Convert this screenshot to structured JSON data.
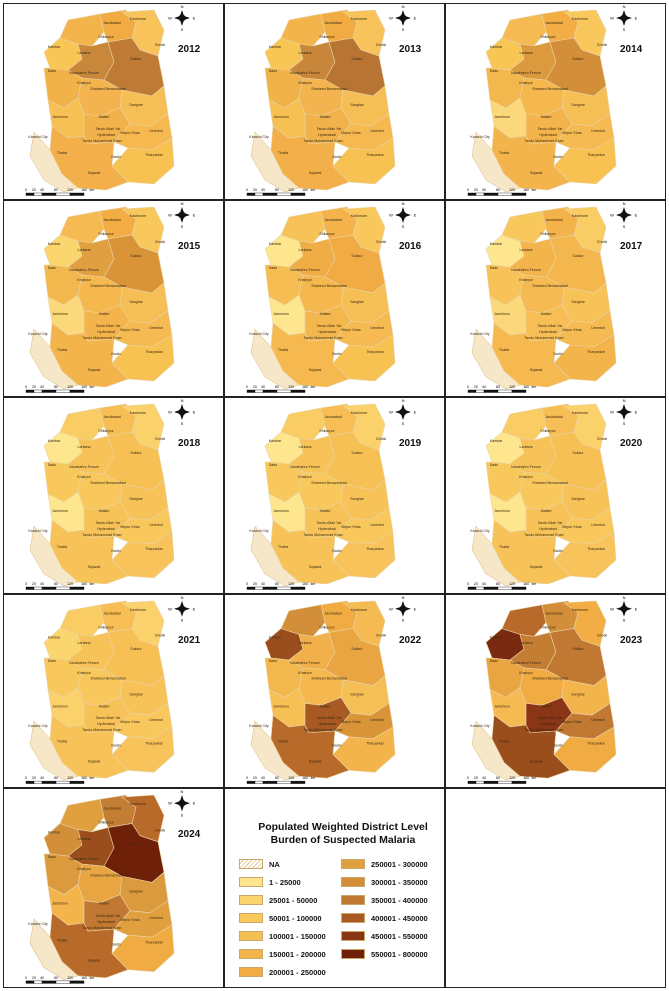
{
  "panels": [
    {
      "year": "2012",
      "fills": [
        "#f8c655",
        "#f3b44c",
        "#f0ab42",
        "#f7c35a",
        "#c8873a",
        "#bf7b35",
        "#f1b24a",
        "#f6c053",
        "#f3b34e",
        "#f6bf55",
        "#f2b24b",
        "#f5b950",
        "#f7c252",
        "#f3b04a"
      ]
    },
    {
      "year": "2013",
      "fills": [
        "#f8c655",
        "#f3b44c",
        "#f0ab42",
        "#f7c35a",
        "#c7863a",
        "#b87432",
        "#f1b24a",
        "#f6c053",
        "#f3b34e",
        "#f6bf55",
        "#f2b24b",
        "#f5b950",
        "#f7c252",
        "#f3b04a"
      ]
    },
    {
      "year": "2014",
      "fills": [
        "#f8c655",
        "#f5bb52",
        "#f2ad45",
        "#f8c85d",
        "#dc9a3e",
        "#d38e3a",
        "#f3b84d",
        "#fbd97a",
        "#f4b84f",
        "#f6bf55",
        "#f3b44c",
        "#f5ba52",
        "#f7c252",
        "#f4b44c"
      ]
    },
    {
      "year": "2015",
      "fills": [
        "#fbd66f",
        "#f5bb52",
        "#f2ad45",
        "#f8c85d",
        "#e0a040",
        "#d99438",
        "#f3b84d",
        "#fbd97a",
        "#f4b84f",
        "#f6bf55",
        "#f3b44c",
        "#f5ba52",
        "#f7c252",
        "#f4b44c"
      ]
    },
    {
      "year": "2016",
      "fills": [
        "#fde68d",
        "#f7c358",
        "#f4b34a",
        "#f8c85d",
        "#f0ac45",
        "#f0ab44",
        "#f5bd52",
        "#fde68d",
        "#f4b84f",
        "#f6bf55",
        "#f4b74d",
        "#f5ba52",
        "#f7c252",
        "#f5b950"
      ]
    },
    {
      "year": "2017",
      "fills": [
        "#fde68d",
        "#f8c85d",
        "#f4b34a",
        "#f9cd63",
        "#f3b44c",
        "#f4b74d",
        "#f7c358",
        "#fbd97a",
        "#f5bb52",
        "#f7c358",
        "#f6be54",
        "#f5ba52",
        "#f4b44c",
        "#f5b950"
      ]
    },
    {
      "year": "2018",
      "fills": [
        "#fde68d",
        "#f9cd63",
        "#f6be54",
        "#fad16a",
        "#f7c358",
        "#f6c055",
        "#f8c85d",
        "#fde68d",
        "#f8c85d",
        "#f7c358",
        "#f7c358",
        "#f8c85d",
        "#f7c35a",
        "#f7c358"
      ]
    },
    {
      "year": "2019",
      "fills": [
        "#fde68d",
        "#f9cd63",
        "#f6be54",
        "#fad16a",
        "#f7c358",
        "#f6c055",
        "#f8c85d",
        "#fde68d",
        "#f8c85d",
        "#f7c358",
        "#f7c358",
        "#f8c85d",
        "#f7c35a",
        "#f7c358"
      ]
    },
    {
      "year": "2020",
      "fills": [
        "#fde68d",
        "#f9cd63",
        "#f6be54",
        "#fad16a",
        "#f7c358",
        "#f6c055",
        "#f8c85d",
        "#fde68d",
        "#f8c85d",
        "#f7c358",
        "#f7c358",
        "#f8c85d",
        "#f7c35a",
        "#f7c358"
      ]
    },
    {
      "year": "2021",
      "fills": [
        "#fbd66f",
        "#f9cd63",
        "#f6be54",
        "#fad16a",
        "#f7c358",
        "#f6c055",
        "#f8c85d",
        "#fad16a",
        "#f8c85d",
        "#f7c358",
        "#f7c358",
        "#f8c85d",
        "#f7c35a",
        "#f7c358"
      ]
    },
    {
      "year": "2022",
      "fills": [
        "#9a4e1c",
        "#d38e3a",
        "#f0ab42",
        "#f5bb52",
        "#f2b04a",
        "#e8a542",
        "#f3b84d",
        "#f6c055",
        "#f4b84f",
        "#f6bf55",
        "#a85a22",
        "#d99438",
        "#f3b44c",
        "#b86a2a"
      ]
    },
    {
      "year": "2023",
      "fills": [
        "#7a2a10",
        "#b86a2a",
        "#d38e3a",
        "#f2ad45",
        "#c47e34",
        "#c07833",
        "#e8a542",
        "#f5bb52",
        "#f0ab42",
        "#f3b44c",
        "#8a3515",
        "#c07833",
        "#f0ab42",
        "#9a4e1c"
      ]
    },
    {
      "year": "2024",
      "fills": [
        "#d38e3a",
        "#e0a040",
        "#c47e34",
        "#b86a2a",
        "#9a4e1c",
        "#6e2008",
        "#dc9a3e",
        "#f3b44c",
        "#e8a542",
        "#dc9a3e",
        "#c07833",
        "#e0a040",
        "#f0ab42",
        "#b86a2a"
      ]
    }
  ],
  "district_labels": [
    "Jacobabad",
    "Kashmore",
    "Kambar",
    "Shikarpur",
    "Larkana",
    "Ghotki",
    "Dadu",
    "Naushahro Feroze",
    "Sukkur",
    "Khairpur",
    "Shaheed Benazirabad",
    "Sanghar",
    "Jamshoro",
    "Matiari",
    "Tando Allah Yar",
    "Hyderabad",
    "Mirpur Khas",
    "Umerkot",
    "Tando Muhammad Khan",
    "Karachi City",
    "Thatta",
    "Badin",
    "Tharparkar",
    "Sujawal"
  ],
  "scale_labels": [
    "0",
    "20",
    "40",
    "80",
    "120",
    "160",
    "km"
  ],
  "compass": {
    "n": "N",
    "s": "S",
    "e": "E",
    "w": "W"
  },
  "legend": {
    "title_line1": "Populated Weighted District Level",
    "title_line2": "Burden of Suspected Malaria",
    "col1": [
      {
        "label": "NA",
        "color": "na"
      },
      {
        "label": "1 - 25000",
        "color": "#fde68d"
      },
      {
        "label": "25001 - 50000",
        "color": "#fbd66f"
      },
      {
        "label": "50001 - 100000",
        "color": "#f8c85d"
      },
      {
        "label": "100001 - 150000",
        "color": "#f6bf55"
      },
      {
        "label": "150001 - 200000",
        "color": "#f3b44c"
      },
      {
        "label": "200001 - 250000",
        "color": "#f0ab42"
      }
    ],
    "col2": [
      {
        "label": "250001 - 300000",
        "color": "#e0a040"
      },
      {
        "label": "300001 - 350000",
        "color": "#d38e3a"
      },
      {
        "label": "350001 - 400000",
        "color": "#c07833"
      },
      {
        "label": "400001 - 450000",
        "color": "#a85a22"
      },
      {
        "label": "450001 - 550000",
        "color": "#8a3515"
      },
      {
        "label": "550001 - 800000",
        "color": "#6e2008"
      }
    ]
  }
}
